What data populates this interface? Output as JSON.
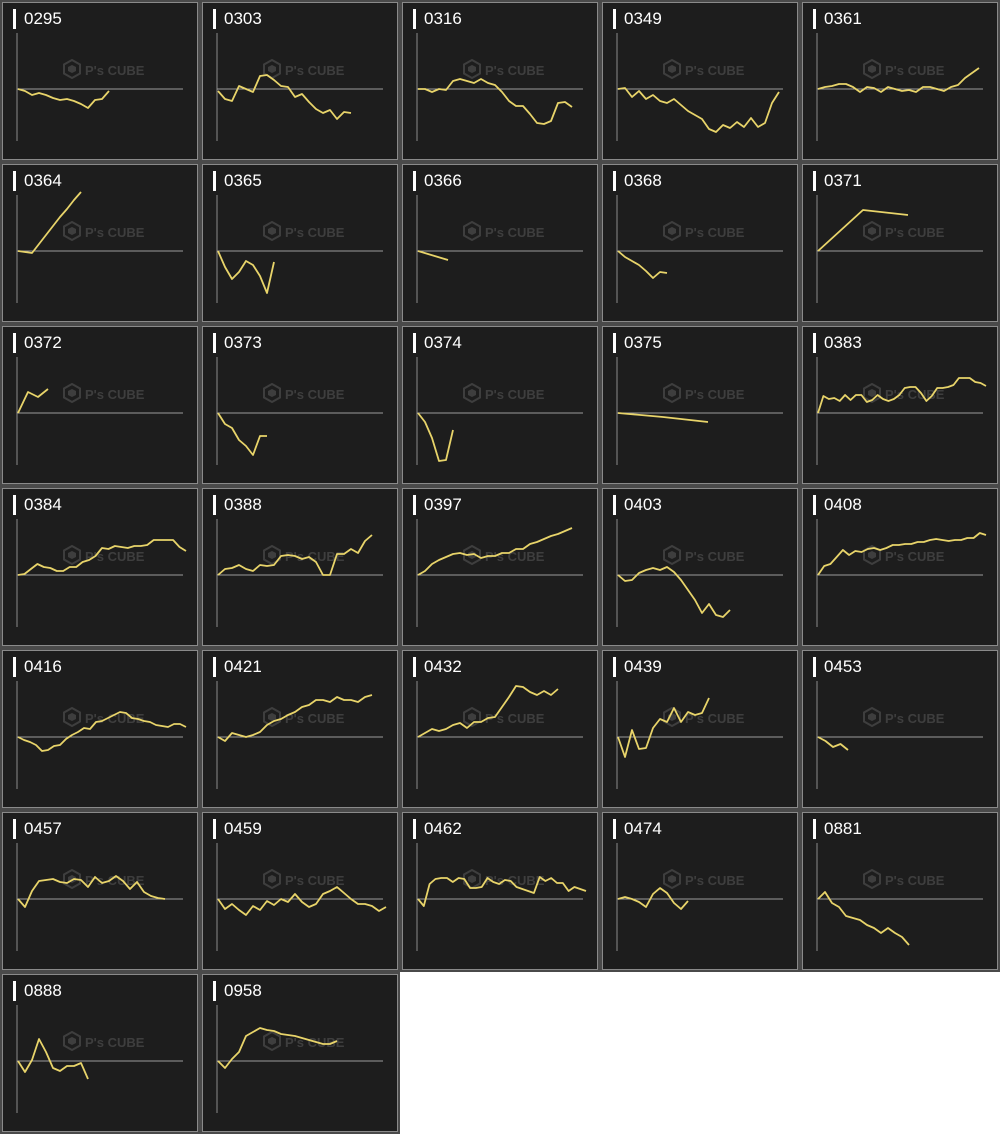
{
  "watermark": {
    "text": "P's CUBE"
  },
  "colors": {
    "line": "#e8d46a",
    "baseline": "#9a9a9a",
    "axis": "#8a8a8a",
    "panel": "#1d1d1d"
  },
  "chart_data": [
    {
      "type": "line",
      "title": "0295",
      "values": [
        0,
        -2,
        -6,
        -4,
        -6,
        -9,
        -11,
        -10,
        -12,
        -15,
        -19,
        -11,
        -10,
        -2
      ]
    },
    {
      "type": "line",
      "title": "0303",
      "values": [
        -2,
        -10,
        -12,
        3,
        0,
        -3,
        13,
        14,
        9,
        3,
        2,
        -8,
        -5,
        -13,
        -20,
        -24,
        -21,
        -30,
        -23,
        -24
      ]
    },
    {
      "type": "line",
      "title": "0316",
      "values": [
        0,
        0,
        -3,
        0,
        -1,
        8,
        10,
        8,
        6,
        10,
        6,
        4,
        -3,
        -12,
        -17,
        -17,
        -25,
        -34,
        -35,
        -32,
        -14,
        -13,
        -18
      ]
    },
    {
      "type": "line",
      "title": "0349",
      "values": [
        0,
        1,
        -8,
        -2,
        -10,
        -6,
        -12,
        -14,
        -10,
        -16,
        -22,
        -26,
        -30,
        -40,
        -43,
        -36,
        -39,
        -33,
        -38,
        -29,
        -38,
        -34,
        -14,
        -3
      ]
    },
    {
      "type": "line",
      "title": "0361",
      "values": [
        0,
        2,
        3,
        5,
        5,
        2,
        -3,
        2,
        1,
        -3,
        2,
        0,
        -2,
        -1,
        -3,
        2,
        2,
        0,
        -2,
        2,
        4,
        11,
        16,
        21
      ]
    },
    {
      "type": "line",
      "title": "0364",
      "values": [
        0,
        -1,
        -2,
        7,
        16,
        25,
        34,
        42,
        51,
        59
      ]
    },
    {
      "type": "line",
      "title": "0365",
      "values": [
        0,
        -16,
        -28,
        -21,
        -10,
        -14,
        -25,
        -42,
        -11
      ]
    },
    {
      "type": "line",
      "title": "0366",
      "values": [
        0,
        -9
      ]
    },
    {
      "type": "line",
      "title": "0368",
      "values": [
        0,
        -6,
        -10,
        -14,
        -20,
        -27,
        -21,
        -22
      ]
    },
    {
      "type": "line",
      "title": "0371",
      "values": [
        0,
        41,
        36
      ]
    },
    {
      "type": "line",
      "title": "0372",
      "values": [
        0,
        21,
        16,
        24
      ]
    },
    {
      "type": "line",
      "title": "0373",
      "values": [
        0,
        -11,
        -15,
        -27,
        -33,
        -42,
        -23,
        -23
      ]
    },
    {
      "type": "line",
      "title": "0374",
      "values": [
        0,
        -9,
        -25,
        -48,
        -47,
        -17
      ]
    },
    {
      "type": "line",
      "title": "0375",
      "values": [
        0,
        -4,
        -9
      ]
    },
    {
      "type": "line",
      "title": "0383",
      "values": [
        0,
        17,
        14,
        15,
        12,
        18,
        13,
        18,
        18,
        11,
        13,
        18,
        14,
        12,
        14,
        18,
        25,
        26,
        26,
        20,
        12,
        17,
        25,
        25,
        26,
        28,
        35,
        35,
        35,
        31,
        30,
        27
      ]
    },
    {
      "type": "line",
      "title": "0384",
      "values": [
        0,
        1,
        6,
        11,
        8,
        7,
        4,
        4,
        8,
        8,
        13,
        15,
        19,
        27,
        26,
        29,
        28,
        27,
        29,
        29,
        30,
        35,
        35,
        35,
        35,
        28,
        24
      ]
    },
    {
      "type": "line",
      "title": "0388",
      "values": [
        0,
        6,
        7,
        10,
        6,
        4,
        10,
        9,
        10,
        19,
        20,
        19,
        16,
        18,
        13,
        0,
        0,
        21,
        21,
        26,
        22,
        34,
        40
      ]
    },
    {
      "type": "line",
      "title": "0397",
      "values": [
        0,
        4,
        11,
        15,
        18,
        21,
        22,
        20,
        21,
        17,
        19,
        19,
        22,
        22,
        26,
        26,
        31,
        33,
        36,
        39,
        41,
        44,
        47
      ]
    },
    {
      "type": "line",
      "title": "0403",
      "values": [
        0,
        -6,
        -5,
        2,
        5,
        7,
        5,
        8,
        3,
        -5,
        -15,
        -25,
        -38,
        -29,
        -40,
        -42,
        -35
      ]
    },
    {
      "type": "line",
      "title": "0408",
      "values": [
        0,
        9,
        11,
        18,
        25,
        20,
        24,
        23,
        26,
        27,
        25,
        27,
        30,
        30,
        31,
        31,
        33,
        33,
        35,
        36,
        35,
        34,
        35,
        35,
        37,
        37,
        42,
        40
      ]
    },
    {
      "type": "line",
      "title": "0416",
      "values": [
        0,
        -3,
        -5,
        -8,
        -14,
        -13,
        -9,
        -8,
        -2,
        2,
        5,
        9,
        8,
        15,
        16,
        19,
        22,
        25,
        24,
        19,
        18,
        16,
        15,
        12,
        11,
        10,
        13,
        13,
        10
      ]
    },
    {
      "type": "line",
      "title": "0421",
      "values": [
        0,
        -4,
        4,
        2,
        0,
        2,
        5,
        12,
        16,
        18,
        22,
        25,
        30,
        32,
        37,
        37,
        35,
        40,
        37,
        37,
        35,
        40,
        42
      ]
    },
    {
      "type": "line",
      "title": "0432",
      "values": [
        0,
        4,
        8,
        6,
        8,
        12,
        14,
        9,
        15,
        15,
        19,
        20,
        30,
        40,
        51,
        50,
        45,
        42,
        46,
        42,
        48
      ]
    },
    {
      "type": "line",
      "title": "0439",
      "values": [
        0,
        -20,
        7,
        -12,
        -11,
        9,
        18,
        15,
        29,
        15,
        25,
        22,
        24,
        39
      ]
    },
    {
      "type": "line",
      "title": "0453",
      "values": [
        0,
        -4,
        -10,
        -7,
        -13
      ]
    },
    {
      "type": "line",
      "title": "0457",
      "values": [
        0,
        -8,
        8,
        18,
        19,
        20,
        17,
        16,
        20,
        19,
        12,
        22,
        16,
        18,
        23,
        18,
        10,
        17,
        7,
        3,
        1,
        0
      ]
    },
    {
      "type": "line",
      "title": "0459",
      "values": [
        0,
        -10,
        -5,
        -11,
        -16,
        -7,
        -11,
        -2,
        -6,
        0,
        -3,
        5,
        -3,
        -8,
        -5,
        5,
        8,
        12,
        6,
        0,
        -5,
        -5,
        -7,
        -12,
        -8
      ]
    },
    {
      "type": "line",
      "title": "0462",
      "values": [
        0,
        -7,
        15,
        20,
        21,
        21,
        17,
        21,
        20,
        11,
        11,
        12,
        21,
        17,
        15,
        19,
        18,
        12,
        10,
        8,
        6,
        22,
        18,
        21,
        16,
        16,
        8,
        12,
        10,
        8
      ]
    },
    {
      "type": "line",
      "title": "0474",
      "values": [
        0,
        2,
        0,
        -3,
        -8,
        5,
        11,
        6,
        -4,
        -10,
        -2
      ]
    },
    {
      "type": "line",
      "title": "0881",
      "values": [
        0,
        7,
        -4,
        -8,
        -17,
        -19,
        -21,
        -26,
        -29,
        -34,
        -29,
        -34,
        -38,
        -46
      ]
    },
    {
      "type": "line",
      "title": "0888",
      "values": [
        0,
        -11,
        1,
        22,
        9,
        -7,
        -10,
        -5,
        -5,
        -2,
        -18
      ]
    },
    {
      "type": "line",
      "title": "0958",
      "values": [
        0,
        -7,
        2,
        9,
        25,
        29,
        33,
        31,
        30,
        27,
        26,
        25,
        23,
        21,
        19,
        17,
        17,
        20
      ]
    }
  ]
}
